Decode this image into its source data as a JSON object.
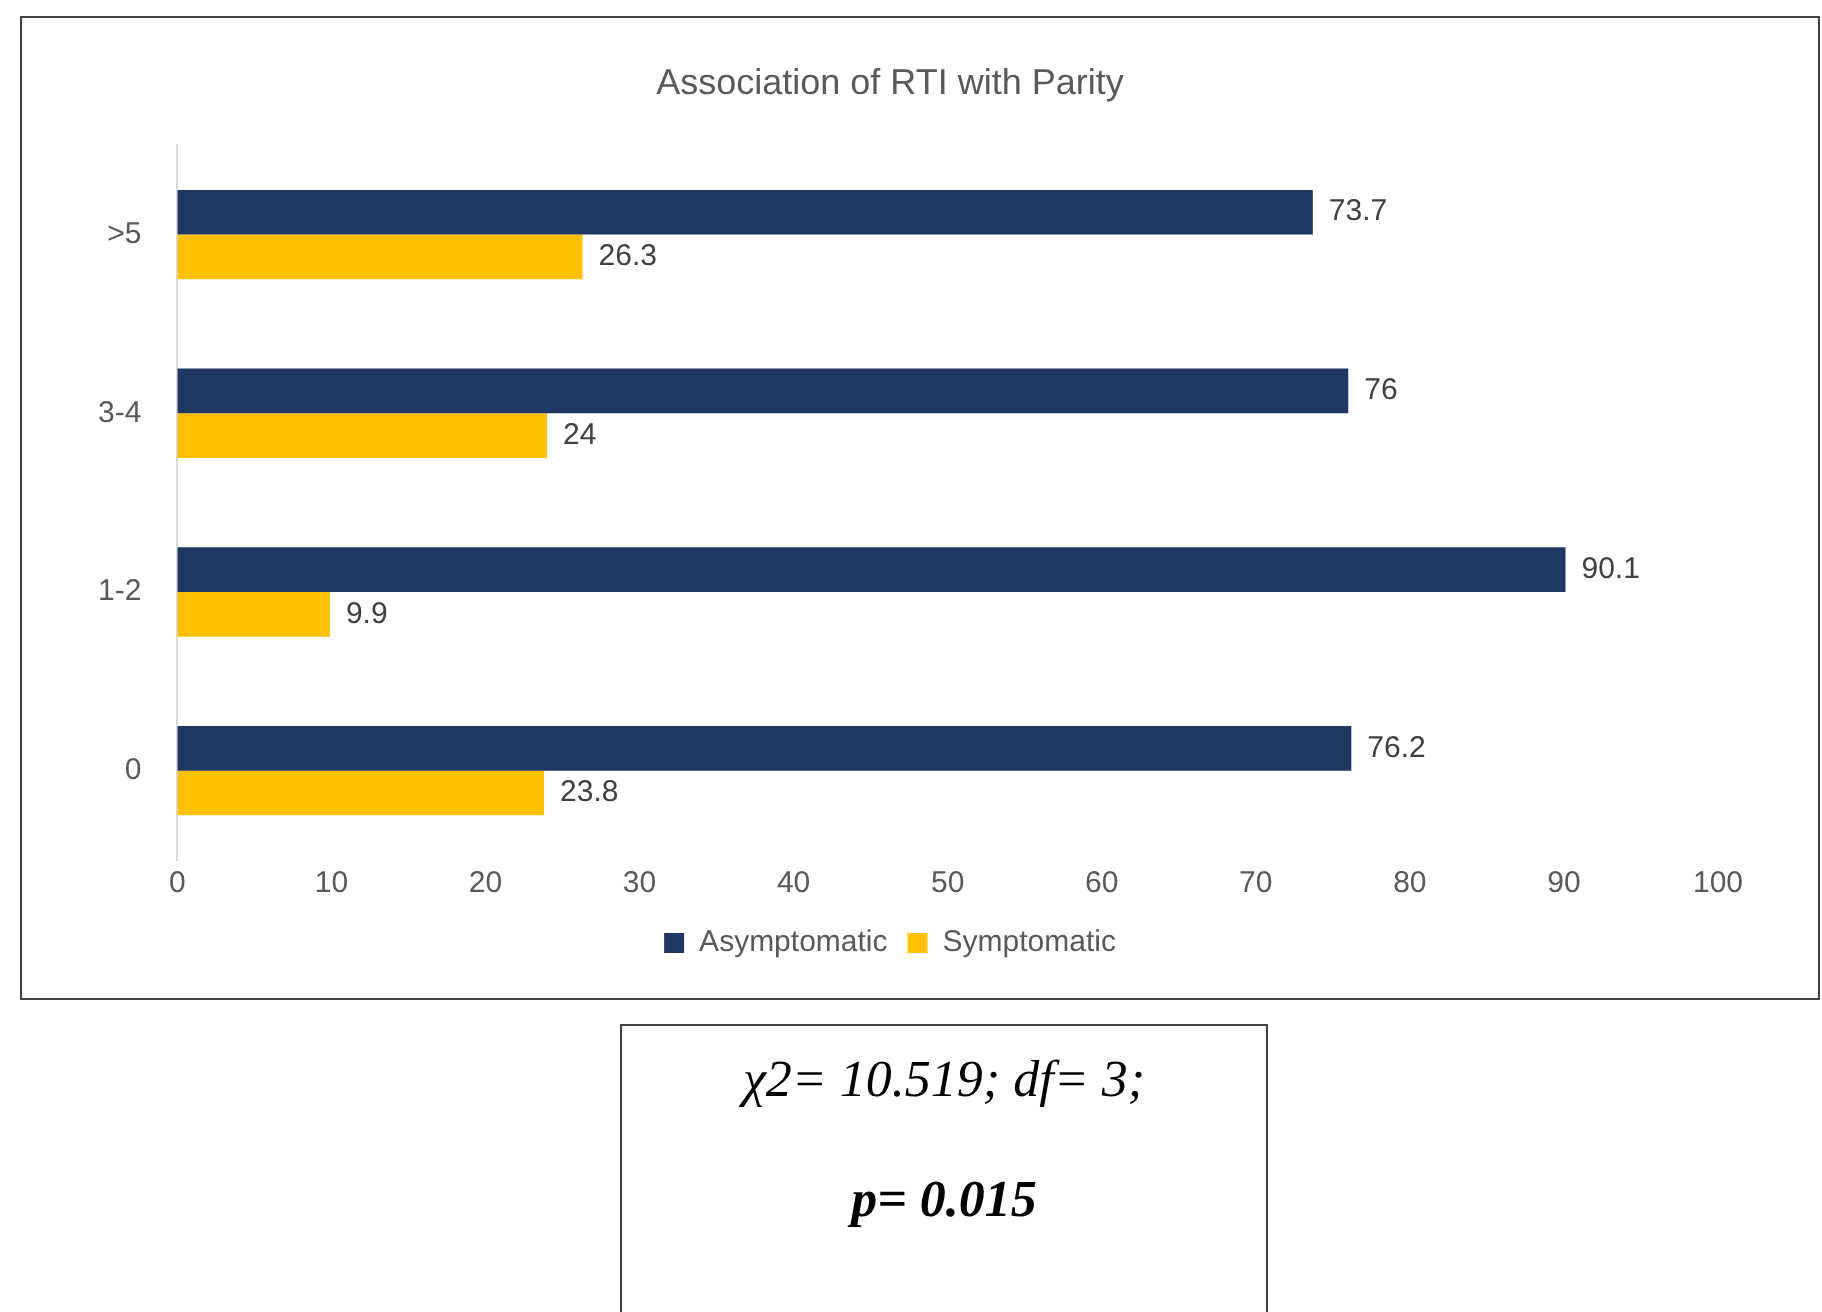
{
  "chart_data": {
    "type": "bar",
    "orientation": "horizontal",
    "title": "Association of RTI with Parity",
    "categories": [
      ">5",
      "3-4",
      "1-2",
      "0"
    ],
    "series": [
      {
        "name": "Asymptomatic",
        "color": "#203864",
        "values": [
          73.7,
          76,
          90.1,
          76.2
        ]
      },
      {
        "name": "Symptomatic",
        "color": "#ffc000",
        "values": [
          26.3,
          24,
          9.9,
          23.8
        ]
      }
    ],
    "xlim": [
      0,
      100
    ],
    "xticks": [
      0,
      10,
      20,
      30,
      40,
      50,
      60,
      70,
      80,
      90,
      100
    ],
    "grid": false,
    "legend": "bottom",
    "data_labels": true,
    "annotations": [
      "χ2= 10.519; df= 3;",
      "p= 0.015"
    ]
  }
}
